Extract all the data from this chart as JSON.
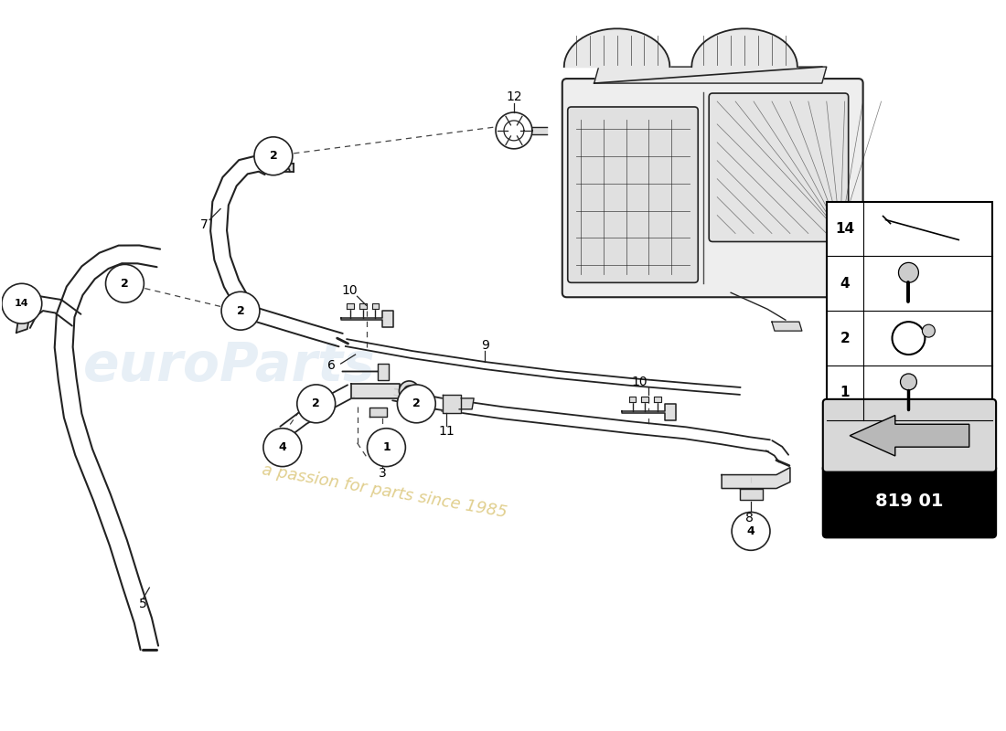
{
  "bg_color": "#ffffff",
  "part_number": "819 01",
  "watermark_text1": "euroParts",
  "watermark_text2": "a passion for parts since 1985",
  "legend_items": [
    {
      "num": "14"
    },
    {
      "num": "4"
    },
    {
      "num": "2"
    },
    {
      "num": "1"
    }
  ],
  "line_color": "#222222",
  "dashed_color": "#444444",
  "fill_color": "#dddddd",
  "circle_bg": "#ffffff"
}
